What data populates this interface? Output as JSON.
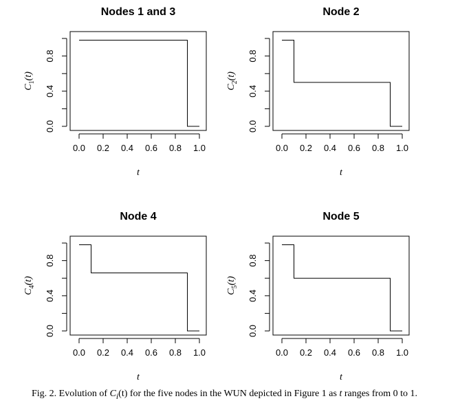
{
  "chart_data": [
    {
      "type": "line",
      "title": "Nodes 1 and 3",
      "xlabel": "t",
      "ylabel": "C1(t)",
      "ylabel_main": "C",
      "ylabel_sub": "1",
      "ylabel_tail": "(t)",
      "xlim": [
        0,
        1
      ],
      "ylim": [
        0,
        1
      ],
      "xticks": [
        "0.0",
        "0.2",
        "0.4",
        "0.6",
        "0.8",
        "1.0"
      ],
      "yticks": [
        "0.0",
        "0.4",
        "0.8"
      ],
      "step": "post",
      "x": [
        0,
        0.9,
        1.0
      ],
      "y": [
        0.98,
        0.0,
        0.0
      ]
    },
    {
      "type": "line",
      "title": "Node 2",
      "xlabel": "t",
      "ylabel": "C2(t)",
      "ylabel_main": "C",
      "ylabel_sub": "2",
      "ylabel_tail": "(t)",
      "xlim": [
        0,
        1
      ],
      "ylim": [
        0,
        1
      ],
      "xticks": [
        "0.0",
        "0.2",
        "0.4",
        "0.6",
        "0.8",
        "1.0"
      ],
      "yticks": [
        "0.0",
        "0.4",
        "0.8"
      ],
      "step": "post",
      "x": [
        0,
        0.1,
        0.9,
        1.0
      ],
      "y": [
        0.98,
        0.5,
        0.0,
        0.0
      ]
    },
    {
      "type": "line",
      "title": "Node 4",
      "xlabel": "t",
      "ylabel": "C4(t)",
      "ylabel_main": "C",
      "ylabel_sub": "4",
      "ylabel_tail": "(t)",
      "xlim": [
        0,
        1
      ],
      "ylim": [
        0,
        1
      ],
      "xticks": [
        "0.0",
        "0.2",
        "0.4",
        "0.6",
        "0.8",
        "1.0"
      ],
      "yticks": [
        "0.0",
        "0.4",
        "0.8"
      ],
      "step": "post",
      "x": [
        0,
        0.1,
        0.9,
        1.0
      ],
      "y": [
        0.98,
        0.66,
        0.0,
        0.0
      ]
    },
    {
      "type": "line",
      "title": "Node 5",
      "xlabel": "t",
      "ylabel": "C5(t)",
      "ylabel_main": "C",
      "ylabel_sub": "5",
      "ylabel_tail": "(t)",
      "xlim": [
        0,
        1
      ],
      "ylim": [
        0,
        1
      ],
      "xticks": [
        "0.0",
        "0.2",
        "0.4",
        "0.6",
        "0.8",
        "1.0"
      ],
      "yticks": [
        "0.0",
        "0.4",
        "0.8"
      ],
      "step": "post",
      "x": [
        0,
        0.1,
        0.9,
        1.0
      ],
      "y": [
        0.98,
        0.6,
        0.0,
        0.0
      ]
    }
  ],
  "caption": {
    "prefix": "Fig. 2.  Evolution of ",
    "c_main": "C",
    "c_sub": "i",
    "c_tail": "(t)",
    "middle": " for the five nodes in the WUN depicted in Figure 1 as ",
    "t_var": "t",
    "suffix": " ranges from 0 to 1."
  }
}
